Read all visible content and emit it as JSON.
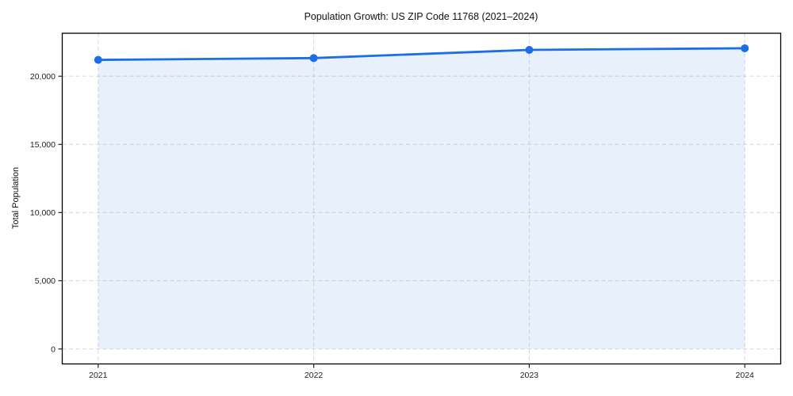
{
  "chart_data": {
    "type": "area",
    "title": "Population Growth: US ZIP Code 11768 (2021–2024)",
    "xlabel": "",
    "ylabel": "Total Population",
    "categories": [
      "2021",
      "2022",
      "2023",
      "2024"
    ],
    "values": [
      21200,
      21330,
      21930,
      22050
    ],
    "ylim": [
      -1100,
      23150
    ],
    "yticks": {
      "values": [
        0,
        5000,
        10000,
        15000,
        20000
      ],
      "labels": [
        "0",
        "5,000",
        "10,000",
        "15,000",
        "20,000"
      ]
    },
    "grid": true,
    "grid_style": "dashed",
    "legend_position": "none",
    "marker": "circle",
    "colors": {
      "line": "#1b6ee6",
      "marker": "#1b6ee6",
      "fill": "#1b6ee6",
      "fill_opacity": 0.1,
      "grid": "#d9dce3",
      "spine": "#000000",
      "tick": "#222222",
      "tick_label": "#222222",
      "title": "#111111",
      "background": "#ffffff"
    }
  }
}
